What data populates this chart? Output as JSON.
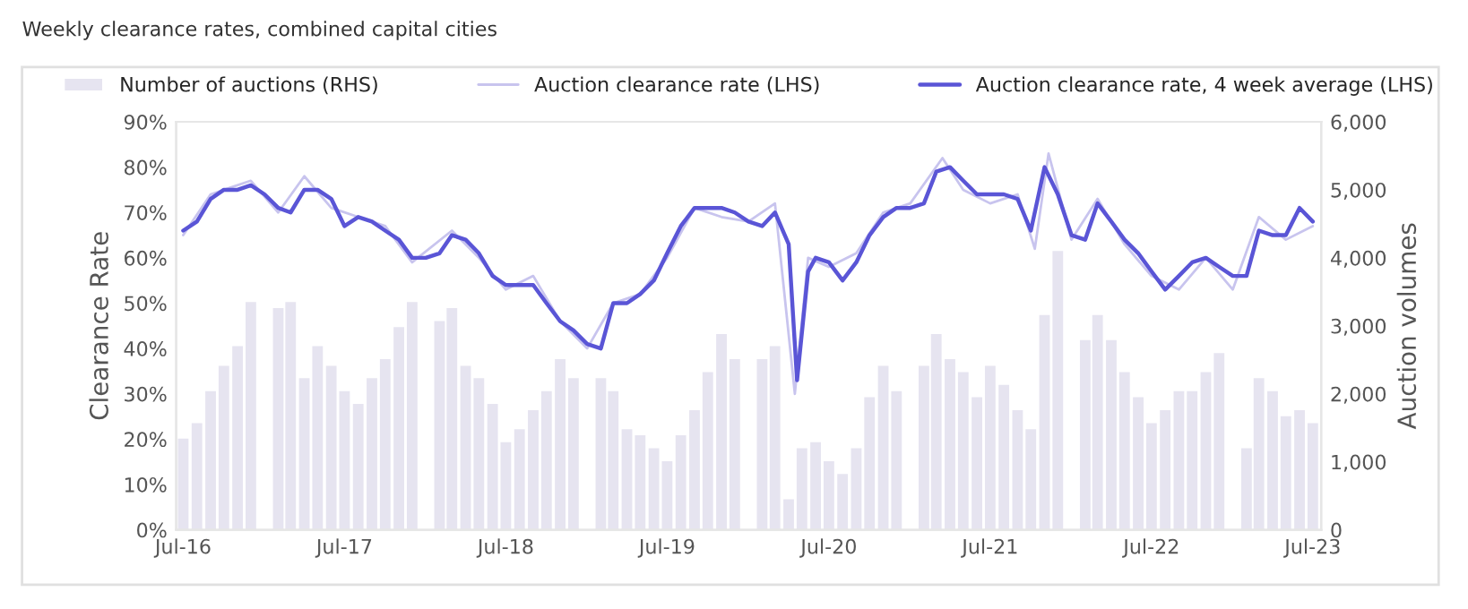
{
  "chart_data": {
    "type": "line",
    "title": "Weekly clearance rates, combined capital cities",
    "ylabel": "Clearance Rate",
    "y2label": "Auction volumes",
    "xlim": [
      "2016-06-15",
      "2023-07-20"
    ],
    "xticks": [
      {
        "value": "2016-07-01",
        "label": "Jul-16"
      },
      {
        "value": "2017-07-01",
        "label": "Jul-17"
      },
      {
        "value": "2018-07-01",
        "label": "Jul-18"
      },
      {
        "value": "2019-07-01",
        "label": "Jul-19"
      },
      {
        "value": "2020-07-01",
        "label": "Jul-20"
      },
      {
        "value": "2021-07-01",
        "label": "Jul-21"
      },
      {
        "value": "2022-07-01",
        "label": "Jul-22"
      },
      {
        "value": "2023-07-01",
        "label": "Jul-23"
      }
    ],
    "ylim": [
      0,
      90
    ],
    "yticks": [
      {
        "value": 0,
        "label": "0%"
      },
      {
        "value": 10,
        "label": "10%"
      },
      {
        "value": 20,
        "label": "20%"
      },
      {
        "value": 30,
        "label": "30%"
      },
      {
        "value": 40,
        "label": "40%"
      },
      {
        "value": 50,
        "label": "50%"
      },
      {
        "value": 60,
        "label": "60%"
      },
      {
        "value": 70,
        "label": "70%"
      },
      {
        "value": 80,
        "label": "80%"
      },
      {
        "value": 90,
        "label": "90%"
      }
    ],
    "y2lim": [
      0,
      6000
    ],
    "y2ticks": [
      0,
      {
        "value": 1000,
        "label": "1,000"
      },
      {
        "value": 2000,
        "label": "2,000"
      },
      {
        "value": 3000,
        "label": "3,000"
      },
      {
        "value": 4000,
        "label": "4,000"
      },
      {
        "value": 5000,
        "label": "5,000"
      },
      {
        "value": 6000,
        "label": "6,000"
      }
    ],
    "legend": "top",
    "grid": false,
    "series": [
      {
        "name": "Number of auctions (RHS)",
        "type": "bar",
        "axis": "y2",
        "color": "#e6e4f0",
        "x": [
          "2016-07-01",
          "2016-08-01",
          "2016-09-01",
          "2016-10-01",
          "2016-11-01",
          "2016-12-01",
          "2017-01-01",
          "2017-02-01",
          "2017-03-01",
          "2017-04-01",
          "2017-05-01",
          "2017-06-01",
          "2017-07-01",
          "2017-08-01",
          "2017-09-01",
          "2017-10-01",
          "2017-11-01",
          "2017-12-01",
          "2018-01-01",
          "2018-02-01",
          "2018-03-01",
          "2018-04-01",
          "2018-05-01",
          "2018-06-01",
          "2018-07-01",
          "2018-08-01",
          "2018-09-01",
          "2018-10-01",
          "2018-11-01",
          "2018-12-01",
          "2019-01-01",
          "2019-02-01",
          "2019-03-01",
          "2019-04-01",
          "2019-05-01",
          "2019-06-01",
          "2019-07-01",
          "2019-08-01",
          "2019-09-01",
          "2019-10-01",
          "2019-11-01",
          "2019-12-01",
          "2020-01-01",
          "2020-02-01",
          "2020-03-01",
          "2020-04-01",
          "2020-05-01",
          "2020-06-01",
          "2020-07-01",
          "2020-08-01",
          "2020-09-01",
          "2020-10-01",
          "2020-11-01",
          "2020-12-01",
          "2021-01-01",
          "2021-02-01",
          "2021-03-01",
          "2021-04-01",
          "2021-05-01",
          "2021-06-01",
          "2021-07-01",
          "2021-08-01",
          "2021-09-01",
          "2021-10-01",
          "2021-11-01",
          "2021-12-01",
          "2022-01-01",
          "2022-02-01",
          "2022-03-01",
          "2022-04-01",
          "2022-05-01",
          "2022-06-01",
          "2022-07-01",
          "2022-08-01",
          "2022-09-01",
          "2022-10-01",
          "2022-11-01",
          "2022-12-01",
          "2023-01-01",
          "2023-02-01",
          "2023-03-01",
          "2023-04-01",
          "2023-05-01",
          "2023-06-01",
          "2023-07-01"
        ],
        "values": [
          1340,
          1570,
          2040,
          2410,
          2700,
          3350,
          0,
          3260,
          3350,
          2230,
          2700,
          2410,
          2040,
          1850,
          2230,
          2510,
          2980,
          3350,
          0,
          3070,
          3260,
          2410,
          2230,
          1850,
          1290,
          1480,
          1760,
          2040,
          2510,
          2230,
          0,
          2230,
          2040,
          1480,
          1390,
          1200,
          1010,
          1390,
          1760,
          2320,
          2880,
          2510,
          0,
          2510,
          2700,
          450,
          1200,
          1290,
          1010,
          820,
          1200,
          1950,
          2410,
          2040,
          0,
          2410,
          2880,
          2510,
          2320,
          1950,
          2410,
          2130,
          1760,
          1480,
          3160,
          4100,
          0,
          2790,
          3160,
          2790,
          2320,
          1950,
          1570,
          1760,
          2040,
          2040,
          2320,
          2600,
          0,
          1200,
          2230,
          2040,
          1670,
          1760,
          1570
        ]
      },
      {
        "name": "Auction clearance rate (LHS)",
        "color": "#c8c4ee",
        "x": [
          "2016-07-01",
          "2016-09-01",
          "2016-12-01",
          "2017-02-01",
          "2017-04-01",
          "2017-06-01",
          "2017-08-01",
          "2017-10-01",
          "2017-12-01",
          "2018-03-01",
          "2018-05-01",
          "2018-07-01",
          "2018-09-01",
          "2018-11-01",
          "2019-01-01",
          "2019-03-01",
          "2019-05-01",
          "2019-07-01",
          "2019-09-01",
          "2019-11-01",
          "2020-01-01",
          "2020-03-01",
          "2020-04-15",
          "2020-05-15",
          "2020-07-01",
          "2020-09-01",
          "2020-11-01",
          "2021-01-01",
          "2021-03-15",
          "2021-05-01",
          "2021-07-01",
          "2021-09-01",
          "2021-10-10",
          "2021-11-10",
          "2022-01-01",
          "2022-03-01",
          "2022-05-01",
          "2022-07-01",
          "2022-09-01",
          "2022-11-01",
          "2023-01-01",
          "2023-03-01",
          "2023-05-01",
          "2023-07-01"
        ],
        "values": [
          65,
          74,
          77,
          70,
          78,
          71,
          69,
          67,
          59,
          66,
          60,
          53,
          56,
          46,
          40,
          50,
          52,
          60,
          71,
          69,
          68,
          72,
          30,
          60,
          58,
          61,
          70,
          72,
          82,
          75,
          72,
          74,
          62,
          83,
          64,
          73,
          63,
          56,
          53,
          60,
          53,
          69,
          64,
          67
        ]
      },
      {
        "name": "Auction clearance rate, 4 week average (LHS)",
        "color": "#5a55d6",
        "x": [
          "2016-07-01",
          "2016-08-01",
          "2016-09-01",
          "2016-10-01",
          "2016-11-01",
          "2016-12-01",
          "2017-01-01",
          "2017-02-01",
          "2017-03-01",
          "2017-04-01",
          "2017-05-01",
          "2017-06-01",
          "2017-07-01",
          "2017-08-01",
          "2017-09-01",
          "2017-10-01",
          "2017-11-01",
          "2017-12-01",
          "2018-01-01",
          "2018-02-01",
          "2018-03-01",
          "2018-04-01",
          "2018-05-01",
          "2018-06-01",
          "2018-07-01",
          "2018-08-01",
          "2018-09-01",
          "2018-10-01",
          "2018-11-01",
          "2018-12-01",
          "2019-01-01",
          "2019-02-01",
          "2019-03-01",
          "2019-04-01",
          "2019-05-01",
          "2019-06-01",
          "2019-07-01",
          "2019-08-01",
          "2019-09-01",
          "2019-10-01",
          "2019-11-01",
          "2019-12-01",
          "2020-01-01",
          "2020-02-01",
          "2020-03-01",
          "2020-04-01",
          "2020-04-20",
          "2020-05-15",
          "2020-06-01",
          "2020-07-01",
          "2020-08-01",
          "2020-09-01",
          "2020-10-01",
          "2020-11-01",
          "2020-12-01",
          "2021-01-01",
          "2021-02-01",
          "2021-03-01",
          "2021-04-01",
          "2021-05-01",
          "2021-06-01",
          "2021-07-01",
          "2021-08-01",
          "2021-09-01",
          "2021-10-01",
          "2021-11-01",
          "2021-12-01",
          "2022-01-01",
          "2022-02-01",
          "2022-03-01",
          "2022-04-01",
          "2022-05-01",
          "2022-06-01",
          "2022-07-01",
          "2022-08-01",
          "2022-09-01",
          "2022-10-01",
          "2022-11-01",
          "2022-12-01",
          "2023-01-01",
          "2023-02-01",
          "2023-03-01",
          "2023-04-01",
          "2023-05-01",
          "2023-06-01",
          "2023-07-01"
        ],
        "values": [
          66,
          68,
          73,
          75,
          75,
          76,
          74,
          71,
          70,
          75,
          75,
          73,
          67,
          69,
          68,
          66,
          64,
          60,
          60,
          61,
          65,
          64,
          61,
          56,
          54,
          54,
          54,
          50,
          46,
          44,
          41,
          40,
          50,
          50,
          52,
          55,
          61,
          67,
          71,
          71,
          71,
          70,
          68,
          67,
          70,
          63,
          33,
          57,
          60,
          59,
          55,
          59,
          65,
          69,
          71,
          71,
          72,
          79,
          80,
          77,
          74,
          74,
          74,
          73,
          66,
          80,
          74,
          65,
          64,
          72,
          68,
          64,
          61,
          57,
          53,
          56,
          59,
          60,
          58,
          56,
          56,
          66,
          65,
          65,
          71,
          68
        ]
      }
    ]
  }
}
